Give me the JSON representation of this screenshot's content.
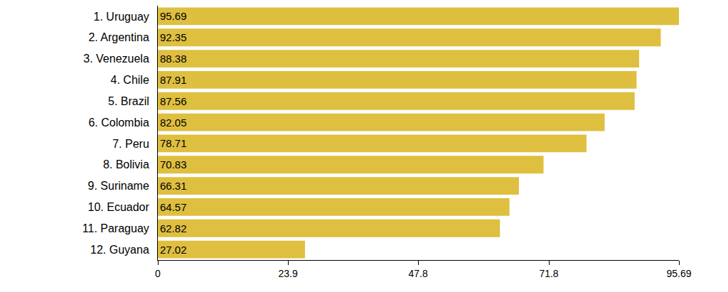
{
  "chart_data": {
    "type": "bar",
    "orientation": "horizontal",
    "categories": [
      "1. Uruguay",
      "2. Argentina",
      "3. Venezuela",
      "4. Chile",
      "5. Brazil",
      "6. Colombia",
      "7. Peru",
      "8. Bolivia",
      "9. Suriname",
      "10. Ecuador",
      "11. Paraguay",
      "12. Guyana"
    ],
    "values": [
      95.69,
      92.35,
      88.38,
      87.91,
      87.56,
      82.05,
      78.71,
      70.83,
      66.31,
      64.57,
      62.82,
      27.02
    ],
    "color": "#dfbf40",
    "xlim": [
      0,
      95.69
    ],
    "xticks": [
      0,
      23.9,
      47.8,
      71.8,
      95.69
    ],
    "grid": false,
    "data_labels": true
  }
}
